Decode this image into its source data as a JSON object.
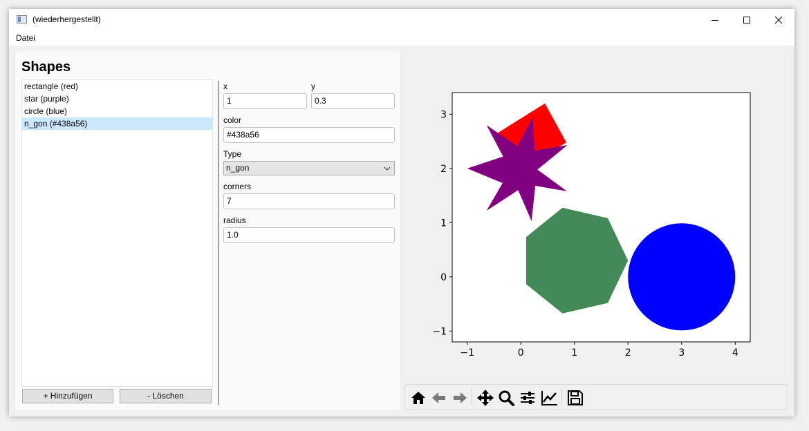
{
  "window": {
    "title": "(wiederhergestellt)"
  },
  "menu": {
    "items": [
      "Datei"
    ]
  },
  "panel": {
    "title": "Shapes",
    "shapes": [
      "rectangle (red)",
      "star (purple)",
      "circle (blue)",
      "n_gon (#438a56)"
    ],
    "selected_index": 3,
    "add_button": "+ Hinzufügen",
    "delete_button": "- Löschen"
  },
  "form": {
    "x_label": "x",
    "x_value": "1",
    "y_label": "y",
    "y_value": "0.3",
    "color_label": "color",
    "color_value": "#438a56",
    "type_label": "Type",
    "type_value": "n_gon",
    "corners_label": "corners",
    "corners_value": "7",
    "radius_label": "radius",
    "radius_value": "1.0"
  },
  "toolbar": {
    "icons": [
      "home-icon",
      "back-icon",
      "forward-icon",
      "pan-icon",
      "zoom-icon",
      "configure-subplots-icon",
      "edit-axis-icon",
      "save-icon"
    ]
  },
  "chart_data": {
    "type": "scatter",
    "title": "",
    "xlabel": "",
    "ylabel": "",
    "xlim": [
      -1.28,
      4.28
    ],
    "ylim": [
      -1.2,
      3.4
    ],
    "xticks": [
      -1,
      0,
      1,
      2,
      3,
      4
    ],
    "yticks": [
      -1,
      0,
      1,
      2,
      3
    ],
    "x_tick_labels": [
      "−1",
      "0",
      "1",
      "2",
      "3",
      "4"
    ],
    "y_tick_labels": [
      "−1",
      "0",
      "1",
      "2",
      "3"
    ],
    "grid": false,
    "shapes": [
      {
        "kind": "rectangle",
        "color": "#ff0000",
        "points": [
          [
            -0.44,
            2.65
          ],
          [
            0.45,
            3.2
          ],
          [
            0.85,
            2.48
          ],
          [
            -0.04,
            1.95
          ]
        ]
      },
      {
        "kind": "circle",
        "color": "#0000ff",
        "center": [
          3,
          0
        ],
        "radius": 1.0
      },
      {
        "kind": "n_gon",
        "color": "#438a56",
        "center": [
          1,
          0.3
        ],
        "radius": 1.0,
        "corners": 7
      },
      {
        "kind": "star",
        "color": "#800080",
        "center": [
          -0.05,
          2.0
        ],
        "points": [
          [
            0.22,
            2.95
          ],
          [
            0.26,
            2.33
          ],
          [
            0.87,
            2.43
          ],
          [
            0.31,
            1.98
          ],
          [
            0.86,
            1.58
          ],
          [
            0.27,
            1.68
          ],
          [
            0.2,
            1.03
          ],
          [
            -0.05,
            1.6
          ],
          [
            -0.64,
            1.22
          ],
          [
            -0.34,
            1.73
          ],
          [
            -1.0,
            2.0
          ],
          [
            -0.33,
            2.22
          ],
          [
            -0.64,
            2.8
          ],
          [
            -0.06,
            2.41
          ]
        ]
      }
    ]
  }
}
